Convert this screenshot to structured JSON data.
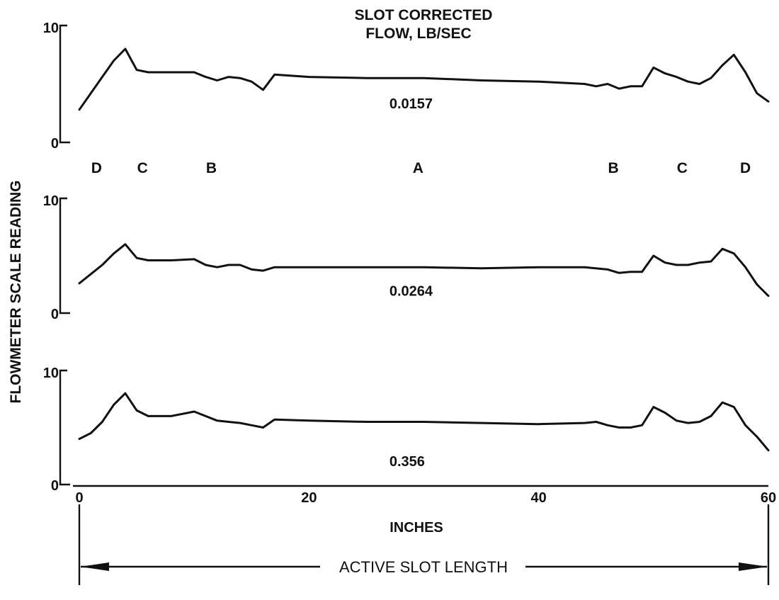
{
  "chart_data": {
    "type": "line",
    "title": "SLOT CORRECTED FLOW, LB/SEC",
    "title_lines": [
      "SLOT CORRECTED",
      "FLOW, LB/SEC"
    ],
    "xlabel": "INCHES",
    "ylabel": "FLOWMETER SCALE READING",
    "xlim": [
      0,
      60
    ],
    "ylim": [
      0,
      10
    ],
    "x_ticks": [
      "0",
      "20",
      "40",
      "60"
    ],
    "y_ticks": [
      "0",
      "10"
    ],
    "grid": false,
    "zone_labels": [
      {
        "text": "D",
        "x": 1.5
      },
      {
        "text": "C",
        "x": 5.5
      },
      {
        "text": "B",
        "x": 11.5
      },
      {
        "text": "A",
        "x": 29.5
      },
      {
        "text": "B",
        "x": 46.5
      },
      {
        "text": "C",
        "x": 52.5
      },
      {
        "text": "D",
        "x": 58
      }
    ],
    "dimension": {
      "text": "ACTIVE SLOT LENGTH",
      "from": 0,
      "to": 60
    },
    "series": [
      {
        "name": "0.0157",
        "label_x": 27,
        "label_y": 2.9,
        "x": [
          0,
          2,
          3,
          4,
          5,
          6,
          8,
          10,
          11,
          12,
          13,
          14,
          15,
          16,
          17,
          20,
          25,
          30,
          35,
          40,
          44,
          45,
          46,
          47,
          48,
          49,
          50,
          51,
          52,
          53,
          54,
          55,
          56,
          57,
          58,
          59,
          60
        ],
        "y": [
          2.8,
          5.6,
          7.0,
          8.0,
          6.2,
          6.0,
          6.0,
          6.0,
          5.6,
          5.3,
          5.6,
          5.5,
          5.2,
          4.5,
          5.8,
          5.6,
          5.5,
          5.5,
          5.3,
          5.2,
          5.0,
          4.8,
          5.0,
          4.6,
          4.8,
          4.8,
          6.4,
          5.9,
          5.6,
          5.2,
          5.0,
          5.5,
          6.6,
          7.5,
          6.0,
          4.2,
          3.5
        ]
      },
      {
        "name": "0.0264",
        "label_x": 27,
        "label_y": 1.5,
        "x": [
          0,
          2,
          3,
          4,
          5,
          6,
          8,
          10,
          11,
          12,
          13,
          14,
          15,
          16,
          17,
          20,
          25,
          30,
          35,
          40,
          44,
          46,
          47,
          48,
          49,
          50,
          51,
          52,
          53,
          54,
          55,
          56,
          57,
          58,
          59,
          60
        ],
        "y": [
          2.6,
          4.2,
          5.2,
          6.0,
          4.8,
          4.6,
          4.6,
          4.7,
          4.2,
          4.0,
          4.2,
          4.2,
          3.8,
          3.7,
          4.0,
          4.0,
          4.0,
          4.0,
          3.9,
          4.0,
          4.0,
          3.8,
          3.5,
          3.6,
          3.6,
          5.0,
          4.4,
          4.2,
          4.2,
          4.4,
          4.5,
          5.6,
          5.2,
          4.0,
          2.5,
          1.5
        ]
      },
      {
        "name": "0.356",
        "label_x": 27,
        "label_y": 1.6,
        "x": [
          0,
          1,
          2,
          3,
          4,
          5,
          6,
          8,
          10,
          11,
          12,
          13,
          14,
          15,
          16,
          17,
          20,
          25,
          30,
          35,
          40,
          44,
          45,
          46,
          47,
          48,
          49,
          50,
          51,
          52,
          53,
          54,
          55,
          56,
          57,
          58,
          59,
          60
        ],
        "y": [
          4.0,
          4.5,
          5.5,
          7.0,
          8.0,
          6.5,
          6.0,
          6.0,
          6.4,
          6.0,
          5.6,
          5.5,
          5.4,
          5.2,
          5.0,
          5.7,
          5.6,
          5.5,
          5.5,
          5.4,
          5.3,
          5.4,
          5.5,
          5.2,
          5.0,
          5.0,
          5.2,
          6.8,
          6.3,
          5.6,
          5.4,
          5.5,
          6.0,
          7.2,
          6.8,
          5.2,
          4.2,
          3.0
        ]
      }
    ]
  }
}
